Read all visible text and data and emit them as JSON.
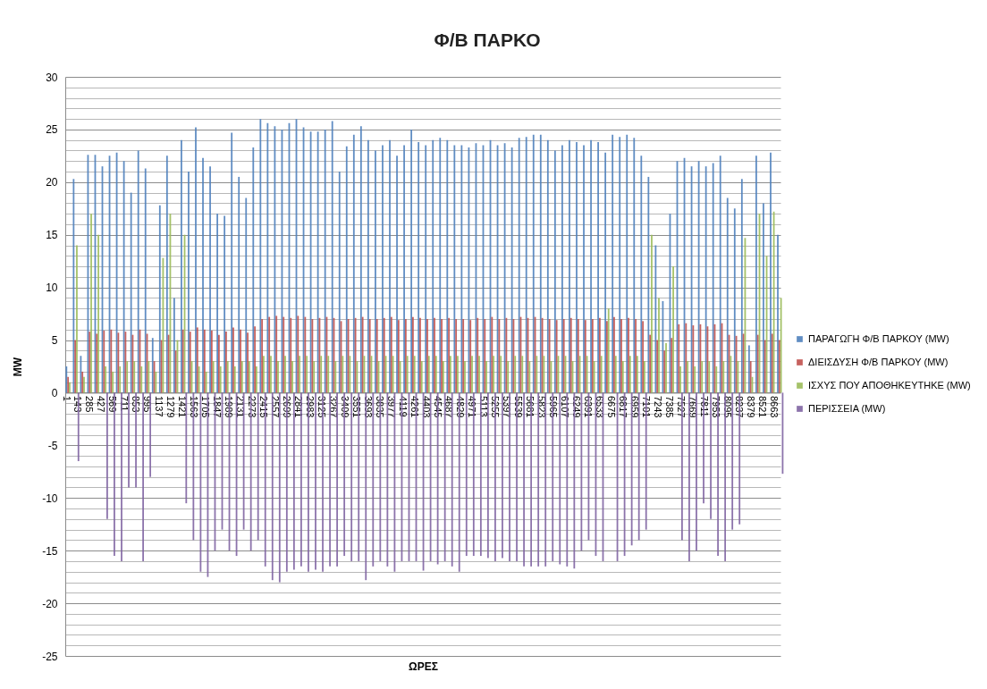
{
  "chart_data": {
    "type": "bar",
    "title": "Φ/Β ΠΑΡΚΟ",
    "xlabel": "ΩΡΕΣ",
    "ylabel": "MW",
    "legend": "right",
    "grid": "y",
    "x": [
      45,
      133,
      221,
      309,
      397,
      485,
      573,
      661,
      749,
      837,
      925,
      1013,
      1101,
      1189,
      1277,
      1365,
      1453,
      1541,
      1629,
      1717,
      1805,
      1893,
      1981,
      2069,
      2157,
      2245,
      2333,
      2421,
      2509,
      2597,
      2685,
      2773,
      2861,
      2949,
      3037,
      3125,
      3213,
      3301,
      3389,
      3477,
      3565,
      3653,
      3741,
      3829,
      3917,
      4005,
      4093,
      4181,
      4269,
      4357,
      4445,
      4533,
      4621,
      4709,
      4797,
      4885,
      4973,
      5061,
      5149,
      5237,
      5325,
      5413,
      5501,
      5589,
      5677,
      5765,
      5853,
      5941,
      6029,
      6117,
      6205,
      6293,
      6381,
      6469,
      6557,
      6645,
      6733,
      6821,
      6909,
      6997,
      7085,
      7173,
      7261,
      7349,
      7437,
      7525,
      7613,
      7701,
      7789,
      7877,
      7965,
      8053,
      8141,
      8229,
      8317,
      8405,
      8493,
      8581,
      8669,
      8757
    ],
    "xlim": [
      1,
      8760
    ],
    "xticks": [
      1,
      143,
      285,
      427,
      569,
      711,
      853,
      995,
      1137,
      1279,
      1421,
      1563,
      1705,
      1847,
      1989,
      2131,
      2273,
      2415,
      2557,
      2699,
      2841,
      2983,
      3125,
      3267,
      3409,
      3551,
      3693,
      3835,
      3977,
      4119,
      4261,
      4403,
      4545,
      4687,
      4829,
      4971,
      5113,
      5255,
      5397,
      5539,
      5681,
      5823,
      5965,
      6107,
      6249,
      6391,
      6533,
      6675,
      6817,
      6959,
      7101,
      7243,
      7385,
      7527,
      7669,
      7811,
      7953,
      8095,
      8237,
      8379,
      8521,
      8663
    ],
    "ylim": [
      -25,
      30
    ],
    "yticks": [
      -25,
      {
        "value": -24,
        "label": null
      },
      {
        "value": -23,
        "label": null
      },
      {
        "value": -22,
        "label": null
      },
      {
        "value": -21,
        "label": null
      },
      -20,
      {
        "value": -19,
        "label": null
      },
      {
        "value": -18,
        "label": null
      },
      {
        "value": -17,
        "label": null
      },
      {
        "value": -16,
        "label": null
      },
      -15,
      {
        "value": -14,
        "label": null
      },
      {
        "value": -13,
        "label": null
      },
      {
        "value": -12,
        "label": null
      },
      {
        "value": -11,
        "label": null
      },
      -10,
      {
        "value": -9,
        "label": null
      },
      {
        "value": -8,
        "label": null
      },
      {
        "value": -7,
        "label": null
      },
      {
        "value": -6,
        "label": null
      },
      -5,
      {
        "value": -4,
        "label": null
      },
      {
        "value": -3,
        "label": null
      },
      {
        "value": -2,
        "label": null
      },
      {
        "value": -1,
        "label": null
      },
      0,
      {
        "value": 1,
        "label": null
      },
      {
        "value": 2,
        "label": null
      },
      {
        "value": 3,
        "label": null
      },
      {
        "value": 4,
        "label": null
      },
      5,
      {
        "value": 6,
        "label": null
      },
      {
        "value": 7,
        "label": null
      },
      {
        "value": 8,
        "label": null
      },
      {
        "value": 9,
        "label": null
      },
      10,
      {
        "value": 11,
        "label": null
      },
      {
        "value": 12,
        "label": null
      },
      {
        "value": 13,
        "label": null
      },
      {
        "value": 14,
        "label": null
      },
      15,
      {
        "value": 16,
        "label": null
      },
      {
        "value": 17,
        "label": null
      },
      {
        "value": 18,
        "label": null
      },
      {
        "value": 19,
        "label": null
      },
      20,
      {
        "value": 21,
        "label": null
      },
      {
        "value": 22,
        "label": null
      },
      {
        "value": 23,
        "label": null
      },
      {
        "value": 24,
        "label": null
      },
      25,
      {
        "value": 26,
        "label": null
      },
      {
        "value": 27,
        "label": null
      },
      {
        "value": 28,
        "label": null
      },
      {
        "value": 29,
        "label": null
      },
      30
    ],
    "series": [
      {
        "name": "ΠΑΡΑΓΩΓΗ Φ/Β ΠΑΡΚΟΥ (MW)",
        "color": "#4f81bd",
        "values": [
          2.5,
          20.3,
          3.5,
          22.6,
          22.6,
          21.5,
          22.5,
          22.8,
          22,
          19,
          23,
          21.3,
          5.2,
          17.8,
          22.5,
          9,
          24,
          21,
          25.2,
          22.3,
          21.5,
          17,
          16.8,
          24.7,
          20.5,
          18.5,
          23.3,
          26,
          25.6,
          25.3,
          25,
          25.6,
          26,
          25.2,
          24.8,
          24.8,
          25,
          25.8,
          21,
          23.4,
          24.5,
          25.3,
          24,
          23,
          23.5,
          24,
          22.5,
          23.5,
          25,
          23.8,
          23.5,
          24,
          24.2,
          24,
          23.5,
          23.5,
          23.3,
          23.7,
          23.5,
          24,
          23.5,
          23.7,
          23.3,
          24.2,
          24.3,
          24.5,
          24.5,
          24,
          23,
          23.5,
          24,
          23.8,
          23.5,
          24,
          23.8,
          22.8,
          24.5,
          24.3,
          24.5,
          24.2,
          22.5,
          20.5,
          14,
          8.7,
          17,
          22,
          22.3,
          21.5,
          22,
          21.5,
          21.8,
          22.5,
          18.5,
          17.5,
          20.3,
          4.5,
          22.5,
          18,
          22.8,
          15
        ]
      },
      {
        "name": "ΔΙΕΙΣΔΥΣΗ  Φ/Β ΠΑΡΚΟΥ (MW)",
        "color": "#c0504d",
        "values": [
          1.5,
          5,
          2,
          5.8,
          5.6,
          5.9,
          6,
          5.7,
          5.8,
          5.5,
          6,
          5.6,
          3,
          5,
          5.5,
          4,
          6,
          5.8,
          6.2,
          6,
          5.9,
          5.5,
          5.8,
          6.2,
          6,
          5.7,
          6.3,
          7,
          7.2,
          7.3,
          7.2,
          7.1,
          7.3,
          7.2,
          7,
          7.1,
          7.2,
          7.1,
          6.8,
          7,
          7.1,
          7.2,
          7,
          7,
          7.1,
          7.2,
          6.9,
          7,
          7.2,
          7.1,
          7,
          7.1,
          7,
          7.1,
          7,
          7,
          6.9,
          7.1,
          7,
          7.2,
          7,
          7.1,
          7,
          7.2,
          7.1,
          7.2,
          7.1,
          7,
          6.9,
          7,
          7.1,
          7,
          6.9,
          7,
          7.1,
          6.8,
          7.2,
          7,
          7.1,
          7,
          6.8,
          5.5,
          5,
          4,
          5.2,
          6.5,
          6.6,
          6.4,
          6.5,
          6.3,
          6.5,
          6.6,
          5.5,
          5.4,
          5.6,
          3,
          5.5,
          5,
          5.6,
          5
        ]
      },
      {
        "name": "ΙΣΧΥΣ ΠΟΥ ΑΠΟΘΗΚΕΥΤΗΚΕ  (MW)",
        "color": "#9bbb59",
        "values": [
          1,
          14,
          1.5,
          17,
          15,
          2.5,
          2,
          2.5,
          3,
          3,
          2.5,
          3,
          2,
          12.8,
          17,
          5,
          15,
          3,
          2.5,
          2,
          3,
          2.5,
          3,
          2.5,
          3,
          3,
          2.5,
          3.5,
          3.5,
          3,
          3.5,
          3,
          3.5,
          3.5,
          3,
          3.5,
          3.5,
          3,
          3.5,
          3.5,
          3,
          3.5,
          3.5,
          3,
          3.5,
          3.5,
          3,
          3.5,
          3.5,
          3,
          3.5,
          3.5,
          3,
          3.5,
          3.5,
          3,
          3.5,
          3.5,
          3,
          3.5,
          3.5,
          3,
          3.5,
          3.5,
          3,
          3.5,
          3.5,
          3,
          3.5,
          3.5,
          3,
          3.5,
          3.5,
          3,
          3.5,
          8,
          3.5,
          3,
          3.5,
          3.5,
          3,
          15,
          9,
          4.7,
          12,
          2.5,
          3,
          2.5,
          3,
          3,
          2.5,
          3,
          3.5,
          3,
          14.7,
          1.5,
          17,
          13,
          17.2,
          9
        ]
      },
      {
        "name": "ΠΕΡΙΣΣΕΙΑ (MW)",
        "color": "#8064a2",
        "values": [
          0,
          -6.5,
          0,
          0,
          0,
          -12,
          -15.5,
          -16,
          -9,
          -9,
          -16,
          -8,
          0,
          0,
          0,
          0,
          -10.5,
          -14,
          -17,
          -17.5,
          -15,
          -13,
          -15,
          -15.5,
          -13,
          -15,
          -14,
          -16.5,
          -17.8,
          -18,
          -17,
          -16.8,
          -16.5,
          -17,
          -16.8,
          -17,
          -16.5,
          -16.5,
          -15.5,
          -16,
          -16,
          -17.8,
          -16.5,
          -16,
          -16.5,
          -17,
          -16,
          -16,
          -16,
          -16.9,
          -16,
          -16.3,
          -16,
          -16.5,
          -17,
          -15.5,
          -15.5,
          -15.5,
          -15.7,
          -16,
          -15.7,
          -16,
          -16,
          -16.5,
          -16.5,
          -16.5,
          -16.5,
          -16,
          -16.3,
          -16.5,
          -16.7,
          -15,
          -14,
          -15.5,
          -16,
          0,
          -16,
          -15.5,
          -14.5,
          -14,
          -13,
          0,
          0,
          0,
          0,
          -14,
          -16,
          -15,
          -10.5,
          -12,
          -15.5,
          -16,
          -13,
          -12.5,
          0,
          0,
          0,
          0,
          0,
          -7.7
        ]
      }
    ]
  }
}
